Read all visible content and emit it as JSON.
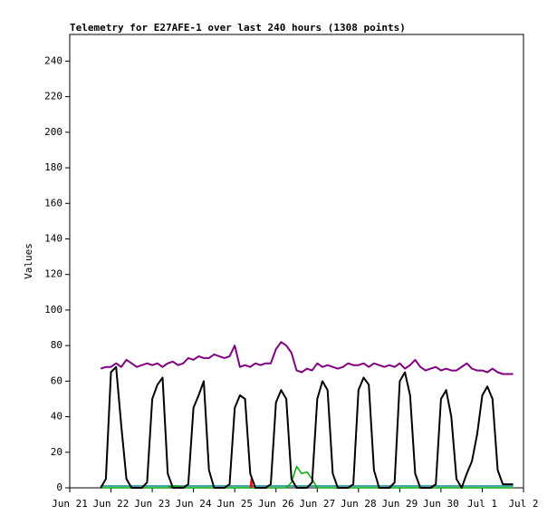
{
  "chart_data": {
    "type": "line",
    "title": "Telemetry for E27AFE-1 over last 240 hours (1308 points)",
    "y_label": "Values",
    "xlim": [
      0,
      11
    ],
    "xticks": [
      {
        "value": 0,
        "label": "Jun 21"
      },
      {
        "value": 1,
        "label": "Jun 22"
      },
      {
        "value": 2,
        "label": "Jun 23"
      },
      {
        "value": 3,
        "label": "Jun 24"
      },
      {
        "value": 4,
        "label": "Jun 25"
      },
      {
        "value": 5,
        "label": "Jun 26"
      },
      {
        "value": 6,
        "label": "Jun 27"
      },
      {
        "value": 7,
        "label": "Jun 28"
      },
      {
        "value": 8,
        "label": "Jun 29"
      },
      {
        "value": 9,
        "label": "Jun 30"
      },
      {
        "value": 10,
        "label": "Jul 1"
      },
      {
        "value": 11,
        "label": "Jul 2"
      }
    ],
    "ylim": [
      0,
      255
    ],
    "yticks": [
      0,
      20,
      40,
      60,
      80,
      100,
      120,
      140,
      160,
      180,
      200,
      220,
      240
    ],
    "x": [
      0.75,
      0.875,
      1.0,
      1.125,
      1.25,
      1.375,
      1.5,
      1.625,
      1.75,
      1.875,
      2.0,
      2.125,
      2.25,
      2.375,
      2.5,
      2.625,
      2.75,
      2.875,
      3.0,
      3.125,
      3.25,
      3.375,
      3.5,
      3.625,
      3.75,
      3.875,
      4.0,
      4.125,
      4.25,
      4.375,
      4.5,
      4.625,
      4.75,
      4.875,
      5.0,
      5.125,
      5.25,
      5.375,
      5.5,
      5.625,
      5.75,
      5.875,
      6.0,
      6.125,
      6.25,
      6.375,
      6.5,
      6.625,
      6.75,
      6.875,
      7.0,
      7.125,
      7.25,
      7.375,
      7.5,
      7.625,
      7.75,
      7.875,
      8.0,
      8.125,
      8.25,
      8.375,
      8.5,
      8.625,
      8.75,
      8.875,
      9.0,
      9.125,
      9.25,
      9.375,
      9.5,
      9.625,
      9.75,
      9.875,
      10.0,
      10.125,
      10.25,
      10.375,
      10.5,
      10.625,
      10.75
    ],
    "series": [
      {
        "color": "#008b8b",
        "width": 1.5,
        "values": [
          1,
          1,
          1,
          1,
          1,
          1,
          1,
          1,
          1,
          1,
          1,
          1,
          1,
          1,
          1,
          1,
          1,
          1,
          1,
          1,
          1,
          1,
          1,
          1,
          1,
          1,
          1,
          1,
          1,
          1,
          1,
          1,
          1,
          1,
          1,
          1,
          1,
          1,
          1,
          1,
          1,
          1,
          1,
          1,
          1,
          1,
          1,
          1,
          1,
          1,
          1,
          1,
          1,
          1,
          1,
          1,
          1,
          1,
          1,
          1,
          1,
          1,
          1,
          1,
          1,
          1,
          1,
          1,
          1,
          1,
          1,
          1,
          1,
          1,
          1,
          1,
          1,
          1,
          1,
          1,
          1
        ]
      },
      {
        "color": "#00aa00",
        "width": 1.5,
        "values": [
          0,
          0,
          0,
          0,
          0,
          0,
          0,
          0,
          0,
          0,
          0,
          0,
          0,
          0,
          1,
          1,
          0,
          0,
          0,
          0,
          0,
          0,
          0,
          0,
          0,
          0,
          0,
          0,
          0,
          0,
          0,
          0,
          0,
          0,
          0,
          0,
          0,
          3,
          12,
          8,
          9,
          5,
          0,
          0,
          0,
          0,
          0,
          0,
          0,
          0,
          0,
          0,
          0,
          0,
          0,
          0,
          0,
          0,
          0,
          0,
          0,
          0,
          0,
          0,
          0,
          0,
          0,
          0,
          0,
          0,
          0,
          0,
          0,
          0,
          0,
          0,
          0,
          0,
          0,
          0,
          0
        ]
      },
      {
        "color": "#ff0000",
        "width": 1.5,
        "x": [
          4.375,
          4.4,
          4.425
        ],
        "values": [
          0,
          5,
          0
        ]
      },
      {
        "color": "#000000",
        "width": 2,
        "values": [
          0,
          5,
          65,
          68,
          35,
          5,
          0,
          0,
          0,
          3,
          50,
          58,
          62,
          8,
          0,
          0,
          0,
          2,
          45,
          52,
          60,
          10,
          0,
          0,
          0,
          2,
          45,
          52,
          50,
          8,
          0,
          0,
          0,
          2,
          48,
          55,
          50,
          5,
          0,
          0,
          0,
          3,
          50,
          60,
          55,
          8,
          0,
          0,
          0,
          2,
          55,
          62,
          58,
          10,
          0,
          0,
          0,
          3,
          60,
          65,
          52,
          8,
          0,
          0,
          0,
          2,
          50,
          55,
          40,
          5,
          0,
          8,
          15,
          30,
          52,
          57,
          50,
          10,
          2,
          2,
          2
        ]
      },
      {
        "color": "#800080",
        "width": 2,
        "values": [
          67,
          68,
          68,
          70,
          68,
          72,
          70,
          68,
          69,
          70,
          69,
          70,
          68,
          70,
          71,
          69,
          70,
          73,
          72,
          74,
          73,
          73,
          75,
          74,
          73,
          74,
          80,
          68,
          69,
          68,
          70,
          69,
          70,
          70,
          78,
          82,
          80,
          76,
          66,
          65,
          67,
          66,
          70,
          68,
          69,
          68,
          67,
          68,
          70,
          69,
          69,
          70,
          68,
          70,
          69,
          68,
          69,
          68,
          70,
          67,
          69,
          72,
          68,
          66,
          67,
          68,
          66,
          67,
          66,
          66,
          68,
          70,
          67,
          66,
          66,
          65,
          67,
          65,
          64,
          64,
          64
        ]
      }
    ]
  }
}
